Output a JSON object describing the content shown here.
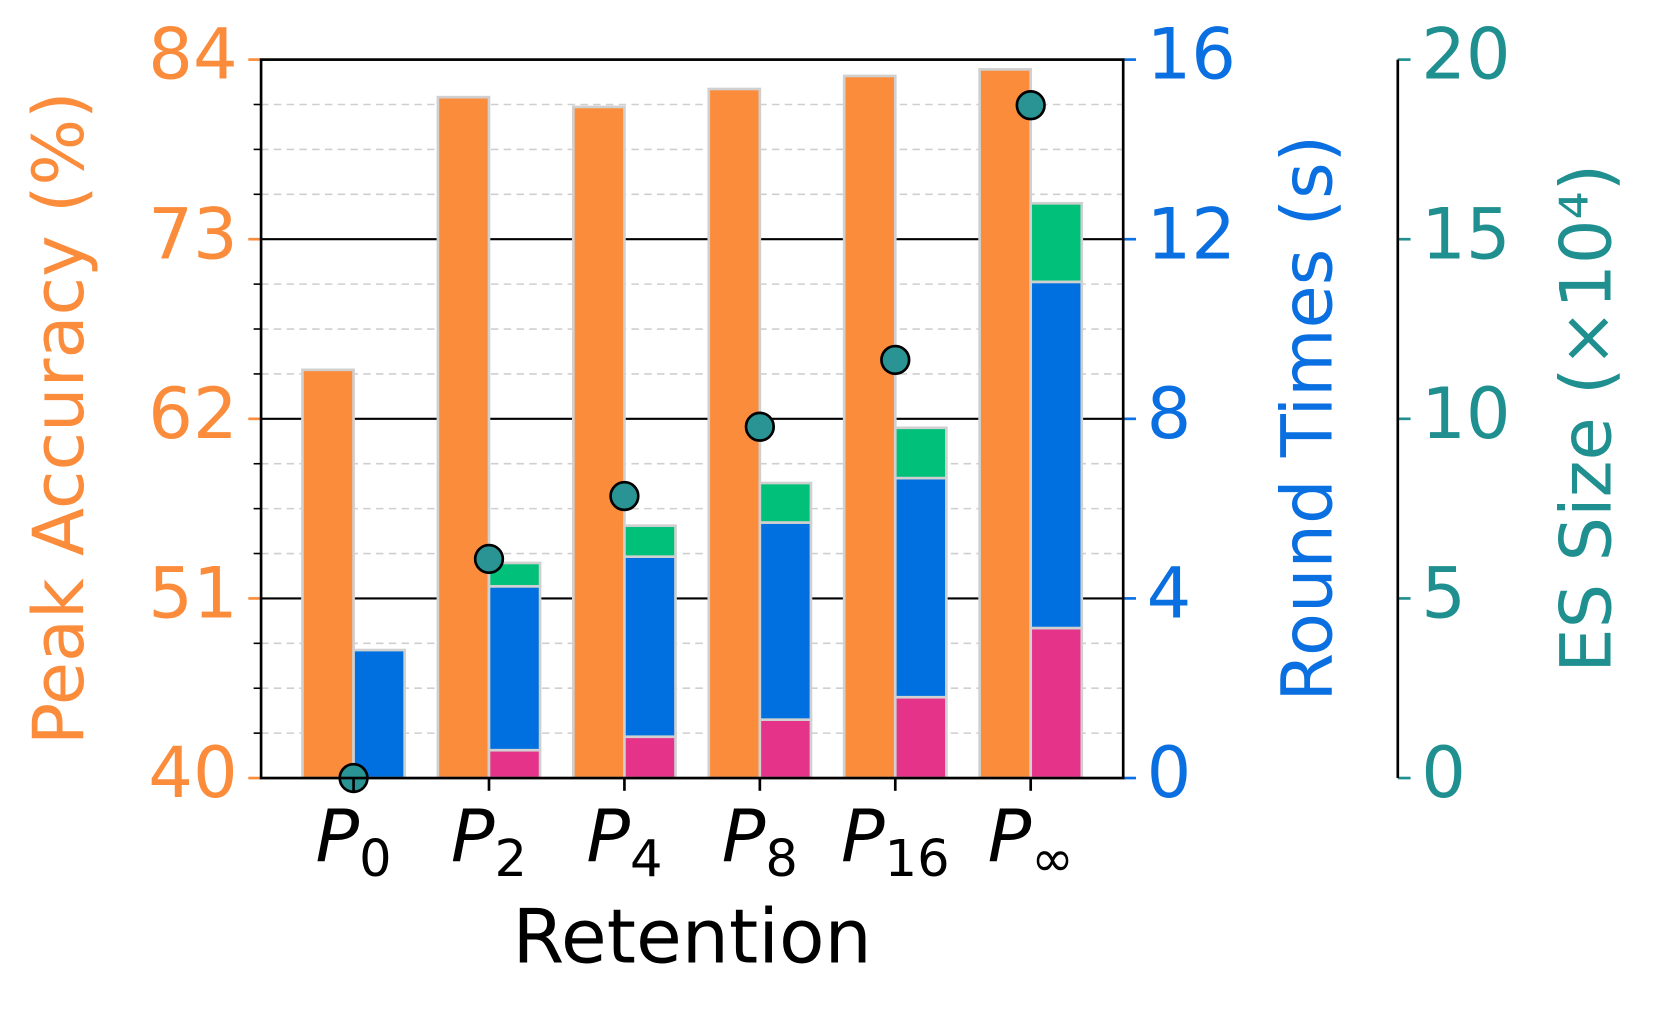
{
  "chart_data": {
    "type": "bar",
    "xlabel": "Retention",
    "ylabel": "Peak Accuracy (%)",
    "y2label": "Round Times (s)",
    "y3label": "ES Size (×10⁴)",
    "categories": [
      {
        "base": "P",
        "sub": "0"
      },
      {
        "base": "P",
        "sub": "2"
      },
      {
        "base": "P",
        "sub": "4"
      },
      {
        "base": "P",
        "sub": "8"
      },
      {
        "base": "P",
        "sub": "16"
      },
      {
        "base": "P",
        "sub": "∞"
      }
    ],
    "ylim": [
      40,
      84
    ],
    "yticks": [
      40,
      51,
      62,
      73,
      84
    ],
    "yminorticks": [
      42.75,
      45.5,
      48.25,
      53.75,
      56.5,
      59.25,
      64.75,
      67.5,
      70.25,
      75.75,
      78.5,
      81.25
    ],
    "y2lim": [
      0,
      16
    ],
    "y2ticks": [
      0,
      4,
      8,
      12,
      16
    ],
    "y3lim": [
      0,
      20
    ],
    "y3ticks": [
      0,
      5,
      10,
      15,
      20
    ],
    "grid": true,
    "axis_colors": {
      "y": "#fb8c3c",
      "y2": "#0a6fe0",
      "y3": "#1f8f8f"
    },
    "series": [
      {
        "type": "bar",
        "axis": "y",
        "color": "#fb8c3c",
        "values": [
          65.0,
          81.7,
          81.1,
          82.2,
          83.0,
          83.4
        ]
      },
      {
        "type": "stacked_bar",
        "axis": "y2",
        "color": "#e6338a",
        "values": [
          0,
          0.62,
          0.92,
          1.3,
          1.8,
          3.34
        ]
      },
      {
        "type": "stacked_bar",
        "axis": "y2",
        "color": "#0070e0",
        "values": [
          2.85,
          3.65,
          4.01,
          4.39,
          4.88,
          7.71
        ]
      },
      {
        "type": "stacked_bar",
        "axis": "y2",
        "color": "#00c07a",
        "values": [
          0,
          0.52,
          0.69,
          0.88,
          1.12,
          1.75
        ]
      },
      {
        "type": "scatter",
        "axis": "y3",
        "color": "#2a9494",
        "values": [
          0,
          6.1,
          7.85,
          9.78,
          11.64,
          18.73
        ]
      }
    ]
  }
}
